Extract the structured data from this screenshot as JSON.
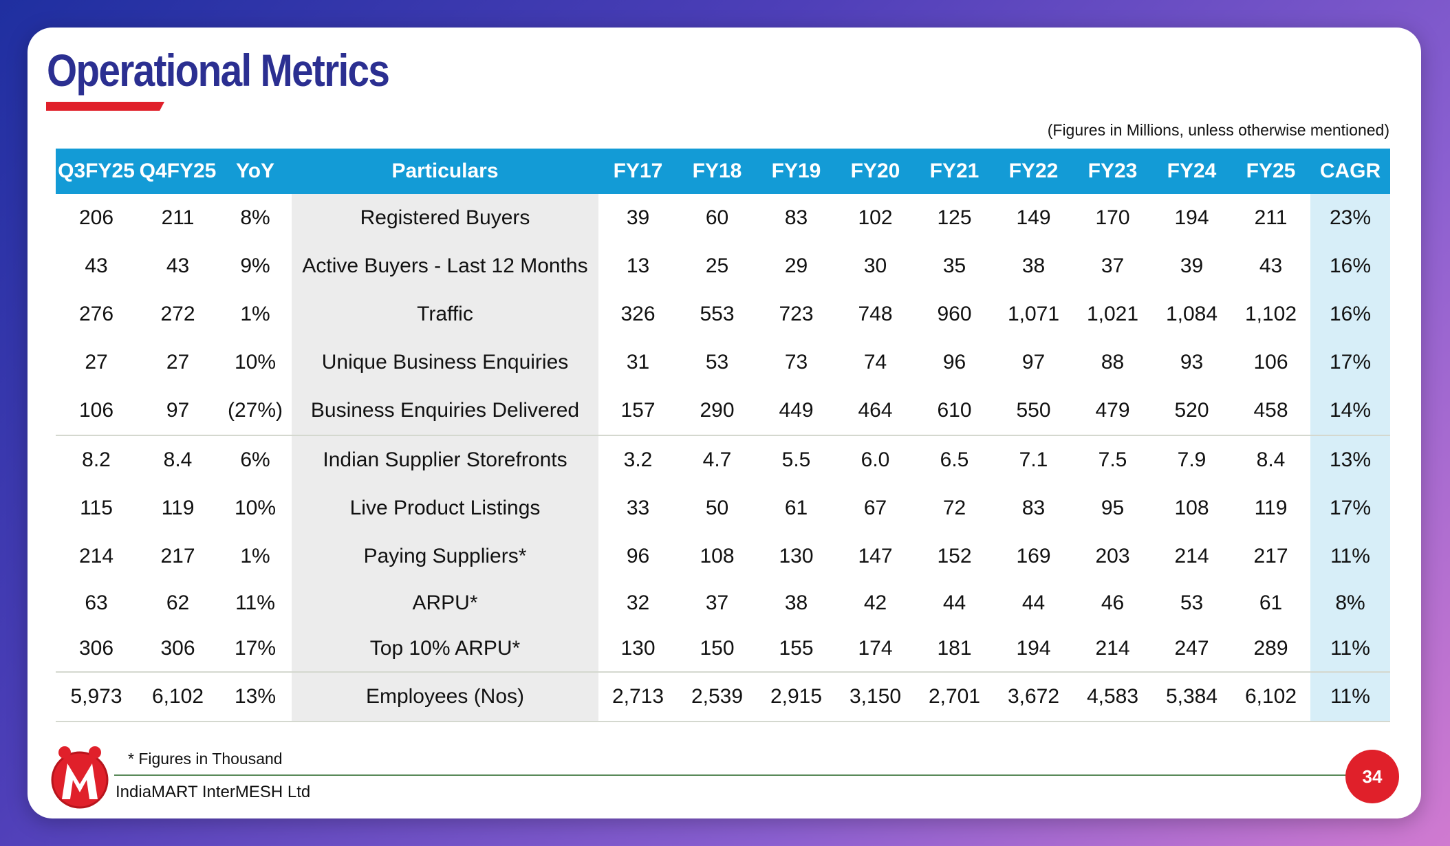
{
  "slide": {
    "title": "Operational Metrics",
    "units_note": "(Figures in Millions, unless otherwise mentioned)",
    "footnote": "* Figures in Thousand",
    "company": "IndiaMART InterMESH Ltd",
    "page_number": "34",
    "logo_icon": "indiamart-logo-icon",
    "accent_color": "#e0202a",
    "header_color": "#139bd6",
    "title_color": "#2b2f91"
  },
  "table": {
    "headers": [
      "Q3FY25",
      "Q4FY25",
      "YoY",
      "Particulars",
      "FY17",
      "FY18",
      "FY19",
      "FY20",
      "FY21",
      "FY22",
      "FY23",
      "FY24",
      "FY25",
      "CAGR"
    ],
    "rows": [
      [
        "206",
        "211",
        "8%",
        "Registered Buyers",
        "39",
        "60",
        "83",
        "102",
        "125",
        "149",
        "170",
        "194",
        "211",
        "23%"
      ],
      [
        "43",
        "43",
        "9%",
        "Active Buyers - Last 12 Months",
        "13",
        "25",
        "29",
        "30",
        "35",
        "38",
        "37",
        "39",
        "43",
        "16%"
      ],
      [
        "276",
        "272",
        "1%",
        "Traffic",
        "326",
        "553",
        "723",
        "748",
        "960",
        "1,071",
        "1,021",
        "1,084",
        "1,102",
        "16%"
      ],
      [
        "27",
        "27",
        "10%",
        "Unique Business Enquiries",
        "31",
        "53",
        "73",
        "74",
        "96",
        "97",
        "88",
        "93",
        "106",
        "17%"
      ],
      [
        "106",
        "97",
        "(27%)",
        "Business Enquiries Delivered",
        "157",
        "290",
        "449",
        "464",
        "610",
        "550",
        "479",
        "520",
        "458",
        "14%"
      ],
      [
        "8.2",
        "8.4",
        "6%",
        "Indian Supplier Storefronts",
        "3.2",
        "4.7",
        "5.5",
        "6.0",
        "6.5",
        "7.1",
        "7.5",
        "7.9",
        "8.4",
        "13%"
      ],
      [
        "115",
        "119",
        "10%",
        "Live Product Listings",
        "33",
        "50",
        "61",
        "67",
        "72",
        "83",
        "95",
        "108",
        "119",
        "17%"
      ],
      [
        "214",
        "217",
        "1%",
        "Paying Suppliers*",
        "96",
        "108",
        "130",
        "147",
        "152",
        "169",
        "203",
        "214",
        "217",
        "11%"
      ],
      [
        "63",
        "62",
        "11%",
        "ARPU*",
        "32",
        "37",
        "38",
        "42",
        "44",
        "44",
        "46",
        "53",
        "61",
        "8%"
      ],
      [
        "306",
        "306",
        "17%",
        "Top 10% ARPU*",
        "130",
        "150",
        "155",
        "174",
        "181",
        "194",
        "214",
        "247",
        "289",
        "11%"
      ],
      [
        "5,973",
        "6,102",
        "13%",
        "Employees (Nos)",
        "2,713",
        "2,539",
        "2,915",
        "3,150",
        "2,701",
        "3,672",
        "4,583",
        "5,384",
        "6,102",
        "11%"
      ]
    ]
  }
}
